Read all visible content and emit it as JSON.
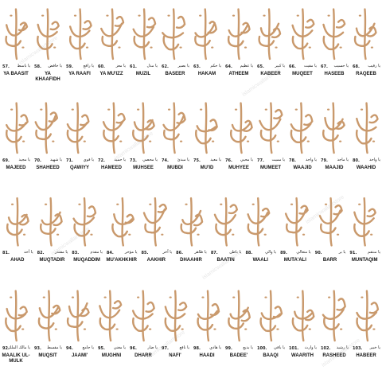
{
  "watermark": "islamicwallartstore",
  "rows": [
    {
      "items": [
        {
          "number": "57.",
          "arabic": "يا باسط",
          "name": "YA BAASIT"
        },
        {
          "number": "58.",
          "arabic": "يا خافض",
          "name": "YA KHAAFIDH"
        },
        {
          "number": "59.",
          "arabic": "يا رافع",
          "name": "YA RAAFI"
        },
        {
          "number": "60.",
          "arabic": "يا معز",
          "name": "YA MU'IZZ"
        },
        {
          "number": "61.",
          "arabic": "يا مذل",
          "name": "MUZIL"
        },
        {
          "number": "62.",
          "arabic": "يا بصير",
          "name": "BASEER"
        },
        {
          "number": "63.",
          "arabic": "يا حكم",
          "name": "HAKAM"
        },
        {
          "number": "64.",
          "arabic": "يا عظيم",
          "name": "ATHEEM"
        },
        {
          "number": "65.",
          "arabic": "يا كبير",
          "name": "KABEER"
        },
        {
          "number": "66.",
          "arabic": "يا مقيت",
          "name": "MUQEET"
        },
        {
          "number": "67.",
          "arabic": "يا حسيب",
          "name": "HASEEB"
        },
        {
          "number": "68.",
          "arabic": "يا رقيب",
          "name": "RAQEEB"
        }
      ]
    },
    {
      "items": [
        {
          "number": "69.",
          "arabic": "يا مجيد",
          "name": "MAJEED"
        },
        {
          "number": "70.",
          "arabic": "يا شهيد",
          "name": "SHAHEED"
        },
        {
          "number": "71.",
          "arabic": "يا قوي",
          "name": "QAWIYY"
        },
        {
          "number": "72.",
          "arabic": "يا حميد",
          "name": "HAMEED"
        },
        {
          "number": "73.",
          "arabic": "يا محصي",
          "name": "MUHSEE"
        },
        {
          "number": "74.",
          "arabic": "يا مبدئ",
          "name": "MUBDI"
        },
        {
          "number": "75.",
          "arabic": "يا معيد",
          "name": "MU'ID"
        },
        {
          "number": "76.",
          "arabic": "يا محيي",
          "name": "MUHYEE"
        },
        {
          "number": "77.",
          "arabic": "يا مميت",
          "name": "MUMEET"
        },
        {
          "number": "78.",
          "arabic": "يا واجد",
          "name": "WAAJID"
        },
        {
          "number": "79.",
          "arabic": "يا ماجد",
          "name": "MAAJID"
        },
        {
          "number": "80.",
          "arabic": "يا واحد",
          "name": "WAAHID"
        }
      ]
    },
    {
      "items": [
        {
          "number": "81.",
          "arabic": "يا أحد",
          "name": "AHAD"
        },
        {
          "number": "82.",
          "arabic": "يا مقتدر",
          "name": "MUQTADIR"
        },
        {
          "number": "83.",
          "arabic": "يا مقدم",
          "name": "MUQADDIM"
        },
        {
          "number": "84.",
          "arabic": "يا مؤخر",
          "name": "MU'AKHKHIR"
        },
        {
          "number": "85.",
          "arabic": "يا آخر",
          "name": "AAKHIR"
        },
        {
          "number": "86.",
          "arabic": "يا ظاهر",
          "name": "DHAAHIR"
        },
        {
          "number": "87.",
          "arabic": "يا باطن",
          "name": "BAATIN"
        },
        {
          "number": "88.",
          "arabic": "يا والي",
          "name": "WAALI"
        },
        {
          "number": "89.",
          "arabic": "يا متعالي",
          "name": "MUTA'ALI"
        },
        {
          "number": "90.",
          "arabic": "يا بر",
          "name": "BARR"
        },
        {
          "number": "91.",
          "arabic": "يا منتقم",
          "name": "MUNTAQIM"
        }
      ]
    },
    {
      "items": [
        {
          "number": "92.",
          "arabic": "يا مالك الملك",
          "name": "MAALIK UL-MULK"
        },
        {
          "number": "93.",
          "arabic": "يا مقسط",
          "name": "MUQSIT"
        },
        {
          "number": "94.",
          "arabic": "يا جامع",
          "name": "JAAMI'"
        },
        {
          "number": "95.",
          "arabic": "يا مغني",
          "name": "MUGHNI"
        },
        {
          "number": "96.",
          "arabic": "يا ضار",
          "name": "DHARR"
        },
        {
          "number": "97.",
          "arabic": "يا نافع",
          "name": "NAFI'"
        },
        {
          "number": "98.",
          "arabic": "يا هادي",
          "name": "HAADI"
        },
        {
          "number": "99.",
          "arabic": "يا بديع",
          "name": "BADEE'"
        },
        {
          "number": "100.",
          "arabic": "يا باقي",
          "name": "BAAQI"
        },
        {
          "number": "101.",
          "arabic": "يا وارث",
          "name": "WAARITH"
        },
        {
          "number": "102.",
          "arabic": "يا رشيد",
          "name": "RASHEED"
        },
        {
          "number": "103.",
          "arabic": "يا خبير",
          "name": "HABEER"
        }
      ]
    }
  ]
}
